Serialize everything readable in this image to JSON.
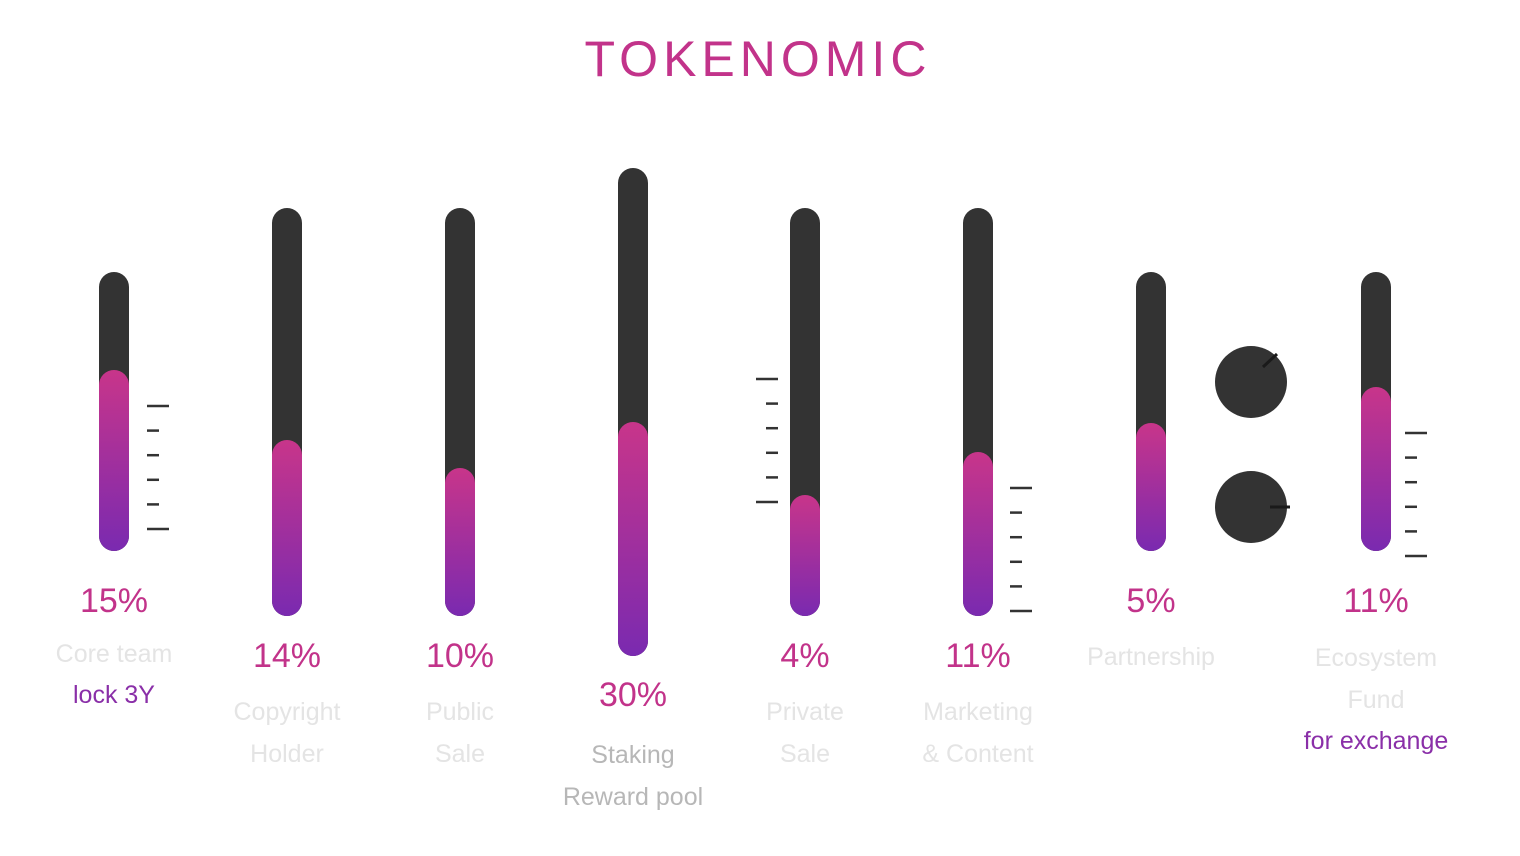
{
  "title": "TOKENOMIC",
  "colors": {
    "title": "#C2338A",
    "value": "#C2338A",
    "note": "#8A2FA8",
    "track": "#333333",
    "label": "#e4e4e4",
    "label_emphasis": "#b7b7b7",
    "fill_top": "#C8358A",
    "fill_bottom": "#7A2AB0"
  },
  "chart_data": {
    "type": "bar",
    "title": "TOKENOMIC",
    "unit": "%",
    "categories": [
      "Core team",
      "Copyright Holder",
      "Public Sale",
      "Staking Reward pool",
      "Private Sale",
      "Marketing & Content",
      "Partnership",
      "Ecosystem Fund"
    ],
    "values": [
      15,
      14,
      10,
      30,
      4,
      11,
      5,
      11
    ],
    "items": [
      {
        "value": 15,
        "value_label": "15%",
        "label_lines": [
          "Core team"
        ],
        "note": "lock 3Y"
      },
      {
        "value": 14,
        "value_label": "14%",
        "label_lines": [
          "Copyright",
          "Holder"
        ]
      },
      {
        "value": 10,
        "value_label": "10%",
        "label_lines": [
          "Public",
          "Sale"
        ]
      },
      {
        "value": 30,
        "value_label": "30%",
        "label_lines": [
          "Staking",
          "Reward pool"
        ]
      },
      {
        "value": 4,
        "value_label": "4%",
        "label_lines": [
          "Private",
          "Sale"
        ]
      },
      {
        "value": 11,
        "value_label": "11%",
        "label_lines": [
          "Marketing",
          "& Content"
        ]
      },
      {
        "value": 5,
        "value_label": "5%",
        "label_lines": [
          "Partnership"
        ]
      },
      {
        "value": 11,
        "value_label": "11%",
        "label_lines": [
          "Ecosystem",
          "Fund"
        ],
        "note": "for exchange"
      }
    ]
  }
}
